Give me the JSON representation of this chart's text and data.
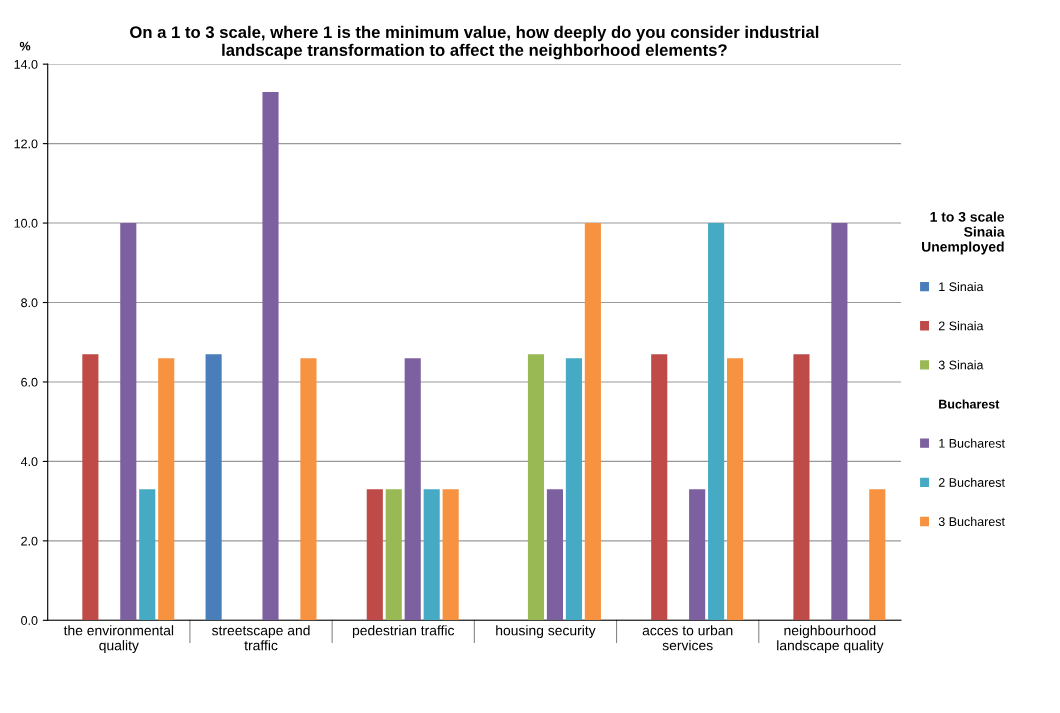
{
  "chart_data": {
    "type": "bar",
    "title": "On a 1 to 3 scale, where 1 is the minimum value, how deeply do you consider industrial\nlandscape transformation to affect the neighborhood elements?",
    "ylabel": "%",
    "categories": [
      "the environmental\nquality",
      "streetscape and\ntraffic",
      "pedestrian traffic",
      "housing security",
      "acces to urban\nservices",
      "neighbourhood\nlandscape quality"
    ],
    "series": [
      {
        "name": "1 Sinaia",
        "color": "#4a7ebb",
        "values": [
          null,
          6.7,
          null,
          null,
          null,
          null
        ]
      },
      {
        "name": "2 Sinaia",
        "color": "#be4b48",
        "values": [
          6.7,
          null,
          3.3,
          null,
          6.7,
          6.7
        ]
      },
      {
        "name": "3 Sinaia",
        "color": "#98b954",
        "values": [
          null,
          null,
          3.3,
          6.7,
          null,
          null
        ]
      },
      {
        "name": "1 Bucharest",
        "color": "#7d60a0",
        "values": [
          10.0,
          13.3,
          6.6,
          3.3,
          3.3,
          10.0
        ]
      },
      {
        "name": "2 Bucharest",
        "color": "#46aac5",
        "values": [
          3.3,
          null,
          3.3,
          6.6,
          10.0,
          null
        ]
      },
      {
        "name": "3 Bucharest",
        "color": "#f69240",
        "values": [
          6.6,
          6.6,
          3.3,
          10.0,
          6.6,
          3.3
        ]
      }
    ],
    "ylim": [
      0,
      14
    ],
    "yticks": [
      {
        "value": 0,
        "label": "0.0"
      },
      {
        "value": 2,
        "label": "2.0"
      },
      {
        "value": 4,
        "label": "4.0"
      },
      {
        "value": 6,
        "label": "6.0"
      },
      {
        "value": 8,
        "label": "8.0"
      },
      {
        "value": 10,
        "label": "10.0"
      },
      {
        "value": 12,
        "label": "12.0"
      },
      {
        "value": 14,
        "label": "14.0"
      }
    ],
    "grid": "y",
    "legend": "right",
    "legend_title": "1 to 3 scale\nSinaia\nUnemployed",
    "annotations": [
      "Bucharest"
    ]
  }
}
